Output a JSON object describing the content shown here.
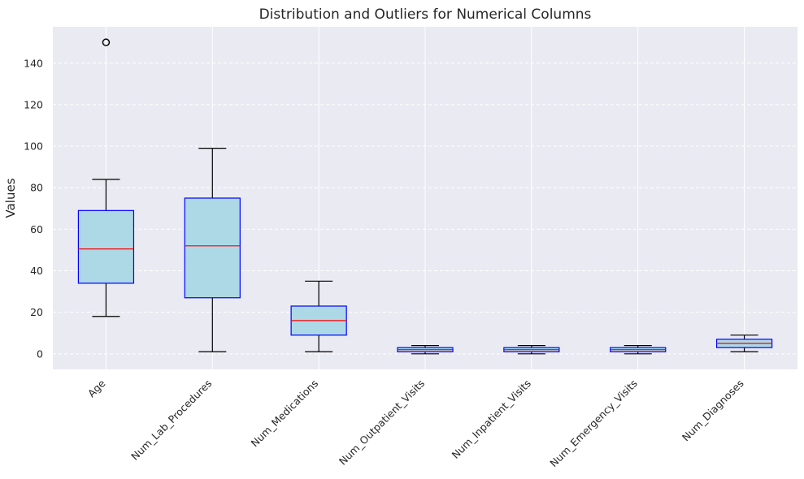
{
  "chart_data": {
    "type": "box",
    "title": "Distribution and Outliers for Numerical Columns",
    "xlabel": "",
    "ylabel": "Values",
    "ylim": [
      -7.5,
      157.5
    ],
    "yticks": [
      0,
      20,
      40,
      60,
      80,
      100,
      120,
      140
    ],
    "grid": true,
    "categories": [
      "Age",
      "Num_Lab_Procedures",
      "Num_Medications",
      "Num_Outpatient_Visits",
      "Num_Inpatient_Visits",
      "Num_Emergency_Visits",
      "Num_Diagnoses"
    ],
    "boxes": [
      {
        "whisker_low": 18,
        "q1": 34,
        "median": 50.5,
        "q3": 69,
        "whisker_high": 84,
        "outliers": [
          150
        ]
      },
      {
        "whisker_low": 1,
        "q1": 27,
        "median": 52,
        "q3": 75,
        "whisker_high": 99,
        "outliers": []
      },
      {
        "whisker_low": 1,
        "q1": 9,
        "median": 16,
        "q3": 23,
        "whisker_high": 35,
        "outliers": []
      },
      {
        "whisker_low": 0,
        "q1": 1,
        "median": 2,
        "q3": 3,
        "whisker_high": 4,
        "outliers": []
      },
      {
        "whisker_low": 0,
        "q1": 1,
        "median": 2,
        "q3": 3,
        "whisker_high": 4,
        "outliers": []
      },
      {
        "whisker_low": 0,
        "q1": 1,
        "median": 2,
        "q3": 3,
        "whisker_high": 4,
        "outliers": []
      },
      {
        "whisker_low": 1,
        "q1": 3,
        "median": 5,
        "q3": 7,
        "whisker_high": 9,
        "outliers": []
      }
    ],
    "colors": {
      "background": "#eaeaf2",
      "grid": "#ffffff",
      "box_fill": "#add8e6",
      "box_edge": "#0000ff",
      "median": "#ff0000",
      "whisker": "#000000"
    }
  }
}
